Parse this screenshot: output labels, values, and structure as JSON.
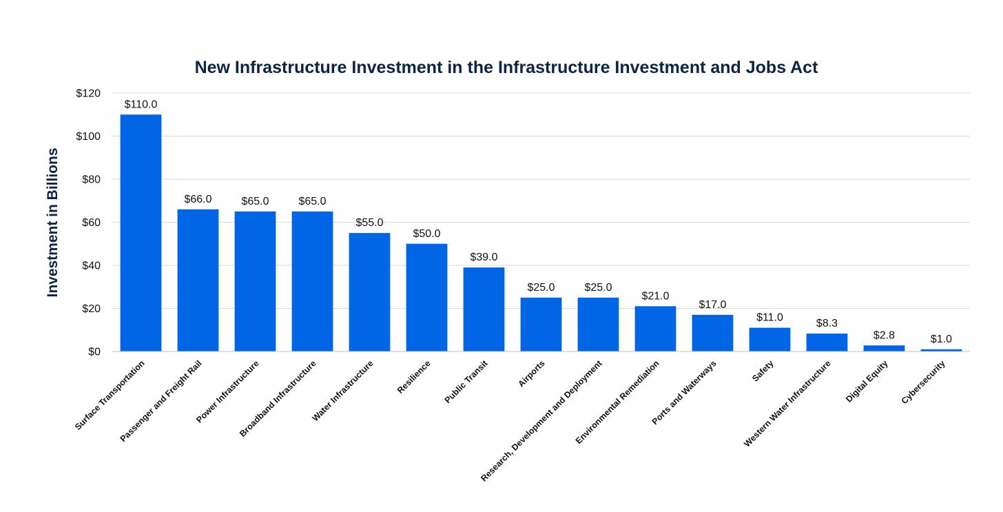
{
  "chart_data": {
    "type": "bar",
    "title": "New Infrastructure Investment in the Infrastructure Investment and Jobs Act",
    "xlabel": "",
    "ylabel": "Investment in Billions",
    "ylim": [
      0,
      120
    ],
    "y_ticks": [
      {
        "value": 0,
        "label": "$0"
      },
      {
        "value": 20,
        "label": "$20"
      },
      {
        "value": 40,
        "label": "$40"
      },
      {
        "value": 60,
        "label": "$60"
      },
      {
        "value": 80,
        "label": "$80"
      },
      {
        "value": 100,
        "label": "$100"
      },
      {
        "value": 120,
        "label": "$120"
      }
    ],
    "grid": true,
    "legend": "none",
    "bar_color": "#0066e6",
    "categories": [
      "Surface Transportation",
      "Passenger and Freight Rail",
      "Power Infrastructure",
      "Broadband Infrastructure",
      "Water Infrastructure",
      "Resilience",
      "Public Transit",
      "Airports",
      "Research, Development and Deployment",
      "Environmental Remediation",
      "Ports and Waterways",
      "Safety",
      "Western Water Infrastructure",
      "Digital Equity",
      "Cybersecurity"
    ],
    "values": [
      110.0,
      66.0,
      65.0,
      65.0,
      55.0,
      50.0,
      39.0,
      25.0,
      25.0,
      21.0,
      17.0,
      11.0,
      8.3,
      2.8,
      1.0
    ],
    "data_labels": [
      "$110.0",
      "$66.0",
      "$65.0",
      "$65.0",
      "$55.0",
      "$50.0",
      "$39.0",
      "$25.0",
      "$25.0",
      "$21.0",
      "$17.0",
      "$11.0",
      "$8.3",
      "$2.8",
      "$1.0"
    ]
  }
}
